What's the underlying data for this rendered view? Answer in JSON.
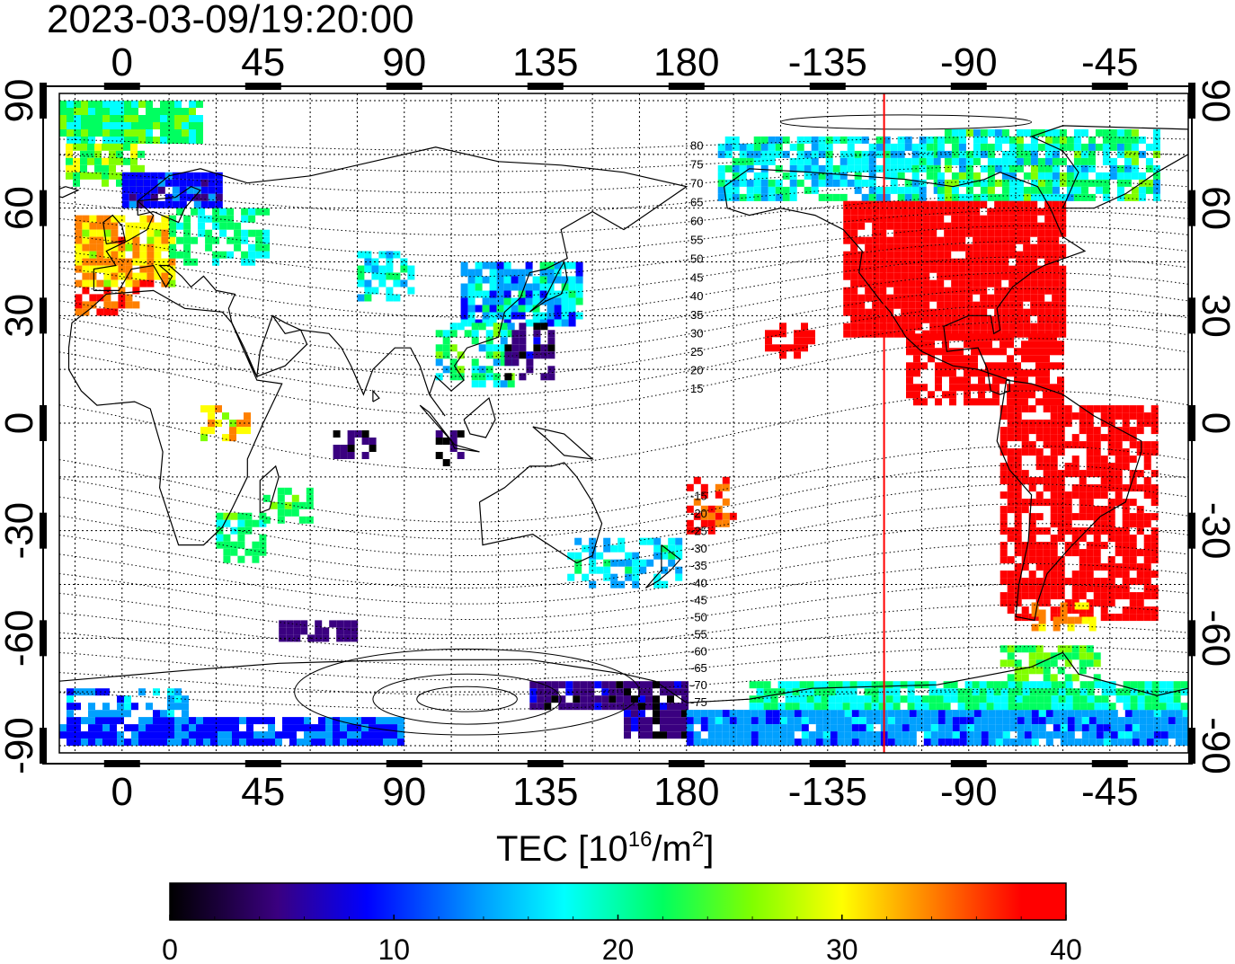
{
  "title": "2023-03-09/19:20:00",
  "map": {
    "lon_ticks_bottom": [
      "0",
      "45",
      "90",
      "135",
      "180",
      "-135",
      "-90",
      "-45"
    ],
    "lon_ticks_top": [
      "0",
      "45",
      "90",
      "135",
      "180",
      "-135",
      "-90",
      "-45"
    ],
    "lat_ticks_left": [
      "90",
      "60",
      "30",
      "0",
      "-30",
      "-60",
      "-90"
    ],
    "lat_ticks_right": [
      "90",
      "60",
      "30",
      "0",
      "-30",
      "-60",
      "-90"
    ],
    "lon_range": [
      -20,
      340
    ],
    "lat_range": [
      -92,
      92
    ],
    "grid": "dotted",
    "geomag_lat_labels_north": [
      "80",
      "75",
      "70",
      "65",
      "60",
      "55",
      "50",
      "45",
      "40",
      "35",
      "30",
      "25",
      "20",
      "15"
    ],
    "geomag_lat_labels_south": [
      "-15",
      "-20",
      "-25",
      "-30",
      "-35",
      "-40",
      "-45",
      "-50",
      "-55",
      "-60",
      "-65",
      "-70",
      "-75"
    ],
    "marker_line_longitude": -117,
    "marker_line_color": "#ff0000"
  },
  "colorbar": {
    "label_main": "TEC  [10",
    "label_sup": "16",
    "label_unit": "/m",
    "label_sup2": "2",
    "label_end": "]",
    "ticks": [
      "0",
      "10",
      "20",
      "30",
      "40"
    ],
    "range": [
      0,
      40
    ],
    "colors": [
      "#000000",
      "#3a0080",
      "#0000ff",
      "#00a0ff",
      "#00ffff",
      "#00ff60",
      "#80ff00",
      "#ffff00",
      "#ff8000",
      "#ff0000"
    ]
  }
}
